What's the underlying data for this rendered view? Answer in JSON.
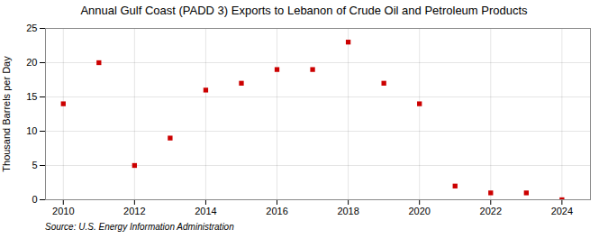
{
  "chart_data": {
    "type": "scatter",
    "title": "Annual Gulf Coast (PADD 3) Exports to Lebanon of Crude Oil and Petroleum Products",
    "ylabel": "Thousand Barrels per Day",
    "source": "Source: U.S. Energy Information Administration",
    "x": [
      2010,
      2011,
      2012,
      2013,
      2014,
      2015,
      2016,
      2017,
      2018,
      2019,
      2020,
      2021,
      2022,
      2023,
      2024
    ],
    "values": [
      14.0,
      20.0,
      5.0,
      9.0,
      16.0,
      17.0,
      19.0,
      19.0,
      23.0,
      17.0,
      14.0,
      2.0,
      1.0,
      1.0,
      0.0
    ],
    "color": "#cc0000",
    "marker": "square",
    "xlim": [
      2009.5,
      2024.8
    ],
    "xticks": [
      2010,
      2012,
      2014,
      2016,
      2018,
      2020,
      2022,
      2024
    ],
    "ylim": [
      0,
      25
    ],
    "yticks": [
      0,
      5,
      10,
      15,
      20,
      25
    ],
    "grid": true
  }
}
